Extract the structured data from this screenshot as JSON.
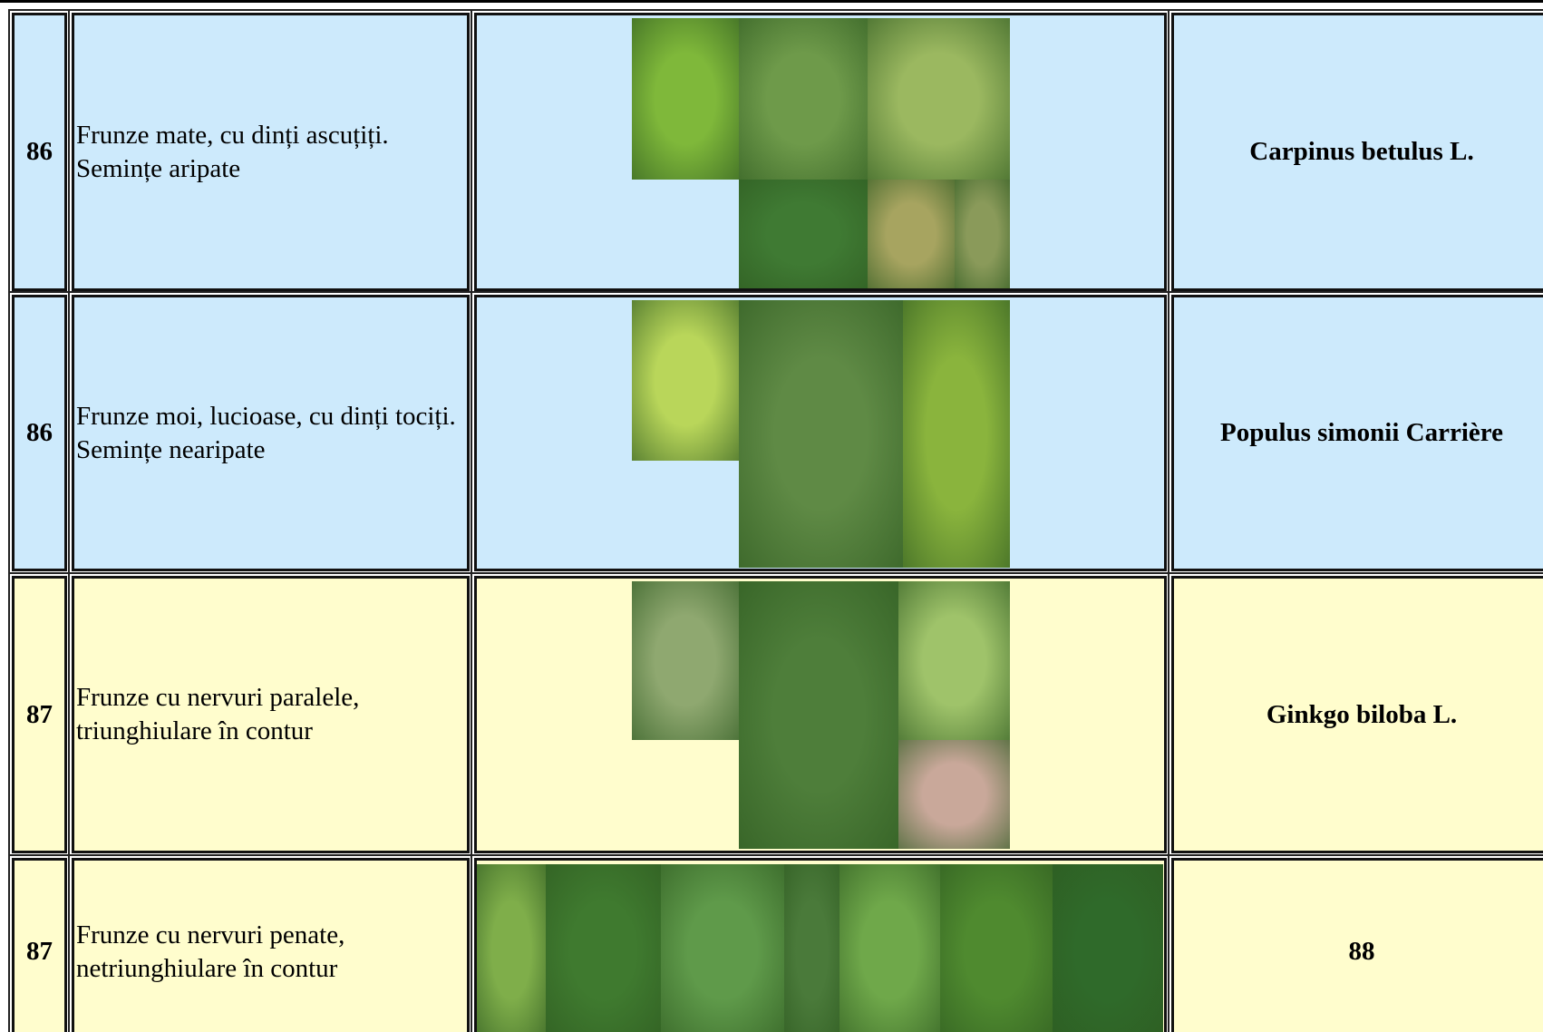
{
  "table": {
    "rows": [
      {
        "number": "86",
        "description": "Frunze mate, cu dinți ascuțiți. Semințe aripate",
        "result": "Carpinus betulus L."
      },
      {
        "number": "86",
        "description": "Frunze moi, lucioase, cu dinți tociți. Semințe nearipate",
        "result": "Populus simonii Carrière"
      },
      {
        "number": "87",
        "description": "Frunze cu nervuri paralele, triunghiulare în contur",
        "result": "Ginkgo biloba L."
      },
      {
        "number": "87",
        "description": "Frunze cu nervuri penate, netriunghiulare în contur",
        "result": "88"
      }
    ]
  }
}
